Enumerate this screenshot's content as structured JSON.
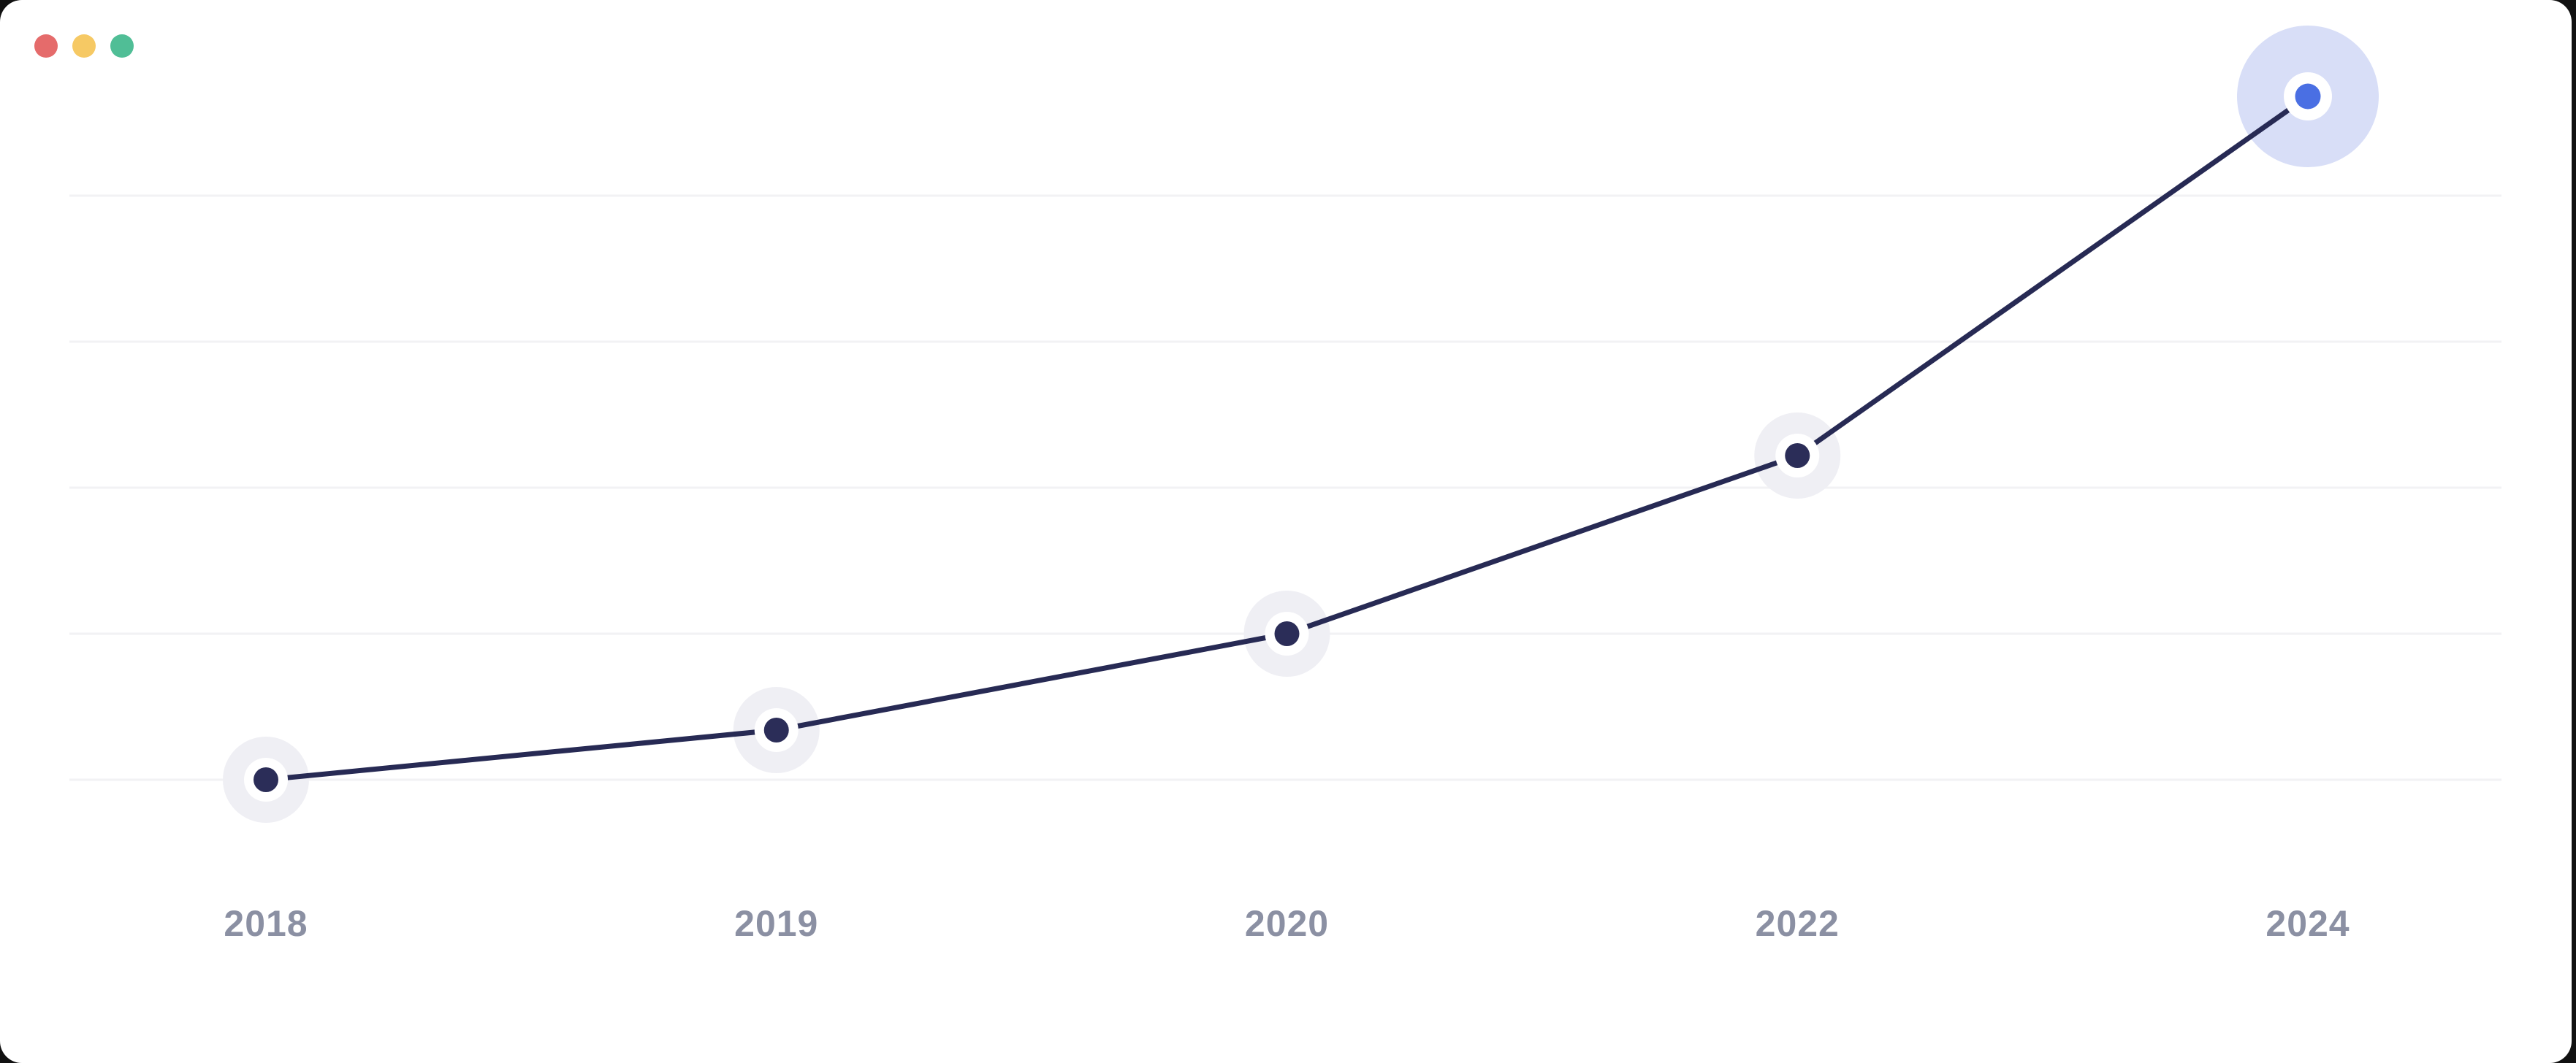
{
  "window": {
    "traffic_lights": [
      {
        "name": "close",
        "color": "#E56B6B"
      },
      {
        "name": "minimize",
        "color": "#F6C964"
      },
      {
        "name": "zoom",
        "color": "#50BE96"
      }
    ]
  },
  "colors": {
    "page_bg": "#111111",
    "card_bg": "#FFFFFF",
    "line": "#272A54",
    "dot": "#2B2D58",
    "dot_ring": "#FFFFFF",
    "dot_halo": "#EFEFF4",
    "highlight_dot": "#4A6FE3",
    "highlight_halo": "#D8DEF7",
    "gridline": "#F2F2F4",
    "label": "#8B90A3"
  },
  "chart_data": {
    "type": "line",
    "title": "",
    "xlabel": "",
    "ylabel": "",
    "categories": [
      "2018",
      "2019",
      "2020",
      "2022",
      "2024"
    ],
    "values": [
      0,
      0.34,
      1.0,
      2.22,
      4.68
    ],
    "value_units": "horizontal-gridline units above the bottom gridline (y axis is unlabeled)",
    "highlight_index": 4,
    "series_count": 1,
    "legend": null,
    "grid": {
      "horizontal_lines": 5,
      "vertical_lines": 0,
      "gridline_spacing_units": 1
    },
    "axis_range_gridline_units": [
      0,
      4
    ],
    "notes": "single upward-trending line; last point (2024) emphasized with blue dot and large lavender halo"
  }
}
